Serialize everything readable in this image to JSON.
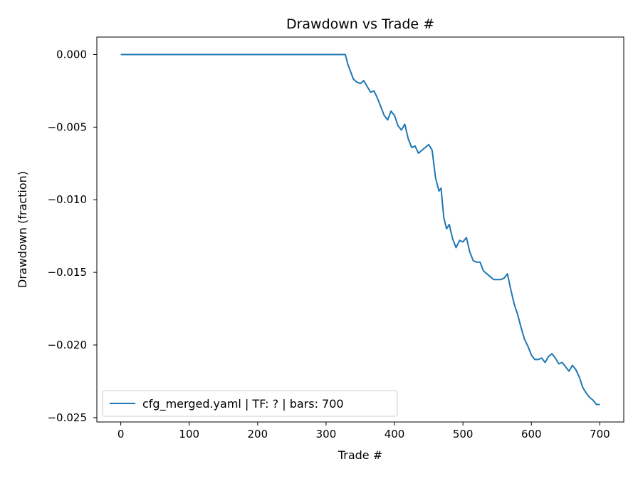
{
  "chart_data": {
    "type": "line",
    "title": "Drawdown vs Trade #",
    "xlabel": "Trade #",
    "ylabel": "Drawdown (fraction)",
    "xlim": [
      -35,
      735
    ],
    "ylim": [
      -0.0253,
      0.0012
    ],
    "x_ticks": [
      0,
      100,
      200,
      300,
      400,
      500,
      600,
      700
    ],
    "x_tick_labels": [
      "0",
      "100",
      "200",
      "300",
      "400",
      "500",
      "600",
      "700"
    ],
    "y_ticks": [
      0.0,
      -0.005,
      -0.01,
      -0.015,
      -0.02,
      -0.025
    ],
    "y_tick_labels": [
      "0.000",
      "−0.005",
      "−0.010",
      "−0.015",
      "−0.020",
      "−0.025"
    ],
    "grid": false,
    "legend_position": "lower-left",
    "series": [
      {
        "name": "cfg_merged.yaml | TF: ? | bars: 700",
        "color": "#1f77b4",
        "points": [
          [
            0,
            0.0
          ],
          [
            100,
            0.0
          ],
          [
            200,
            0.0
          ],
          [
            300,
            0.0
          ],
          [
            328,
            0.0
          ],
          [
            332,
            -0.0007
          ],
          [
            336,
            -0.0012
          ],
          [
            340,
            -0.0017
          ],
          [
            345,
            -0.0019
          ],
          [
            350,
            -0.002
          ],
          [
            355,
            -0.0018
          ],
          [
            360,
            -0.0022
          ],
          [
            365,
            -0.0026
          ],
          [
            370,
            -0.0025
          ],
          [
            375,
            -0.003
          ],
          [
            380,
            -0.0036
          ],
          [
            385,
            -0.0042
          ],
          [
            390,
            -0.0045
          ],
          [
            395,
            -0.0039
          ],
          [
            400,
            -0.0042
          ],
          [
            405,
            -0.0049
          ],
          [
            410,
            -0.0052
          ],
          [
            415,
            -0.0048
          ],
          [
            420,
            -0.0058
          ],
          [
            425,
            -0.0064
          ],
          [
            430,
            -0.0063
          ],
          [
            435,
            -0.0068
          ],
          [
            440,
            -0.0066
          ],
          [
            445,
            -0.0064
          ],
          [
            450,
            -0.0062
          ],
          [
            455,
            -0.0066
          ],
          [
            460,
            -0.0085
          ],
          [
            465,
            -0.0094
          ],
          [
            468,
            -0.0092
          ],
          [
            472,
            -0.0112
          ],
          [
            476,
            -0.012
          ],
          [
            480,
            -0.0117
          ],
          [
            485,
            -0.0127
          ],
          [
            490,
            -0.0133
          ],
          [
            495,
            -0.0128
          ],
          [
            500,
            -0.0129
          ],
          [
            505,
            -0.0126
          ],
          [
            510,
            -0.0136
          ],
          [
            515,
            -0.0142
          ],
          [
            520,
            -0.0143
          ],
          [
            525,
            -0.0143
          ],
          [
            530,
            -0.0149
          ],
          [
            535,
            -0.0151
          ],
          [
            540,
            -0.0153
          ],
          [
            545,
            -0.0155
          ],
          [
            550,
            -0.0155
          ],
          [
            555,
            -0.0155
          ],
          [
            560,
            -0.0154
          ],
          [
            565,
            -0.0151
          ],
          [
            570,
            -0.0162
          ],
          [
            575,
            -0.0172
          ],
          [
            580,
            -0.0179
          ],
          [
            585,
            -0.0188
          ],
          [
            590,
            -0.0196
          ],
          [
            595,
            -0.0201
          ],
          [
            600,
            -0.0207
          ],
          [
            605,
            -0.021
          ],
          [
            610,
            -0.021
          ],
          [
            615,
            -0.0209
          ],
          [
            620,
            -0.0212
          ],
          [
            625,
            -0.0208
          ],
          [
            630,
            -0.0206
          ],
          [
            635,
            -0.0209
          ],
          [
            640,
            -0.0213
          ],
          [
            645,
            -0.0212
          ],
          [
            650,
            -0.0215
          ],
          [
            655,
            -0.0218
          ],
          [
            660,
            -0.0214
          ],
          [
            665,
            -0.0217
          ],
          [
            670,
            -0.0222
          ],
          [
            675,
            -0.0229
          ],
          [
            680,
            -0.0233
          ],
          [
            685,
            -0.0236
          ],
          [
            690,
            -0.0238
          ],
          [
            695,
            -0.0241
          ],
          [
            700,
            -0.0241
          ]
        ]
      }
    ]
  }
}
